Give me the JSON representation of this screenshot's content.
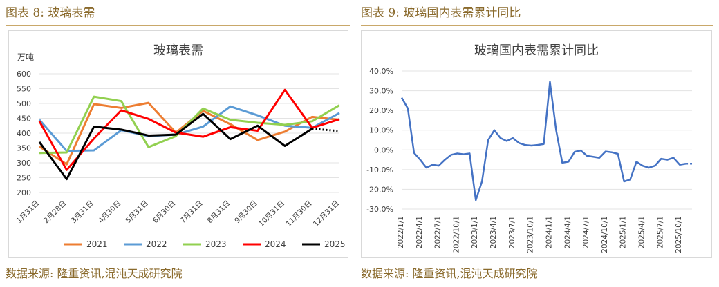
{
  "left": {
    "fig_title": "图表 8: 玻璃表需",
    "source": "数据来源: 隆重资讯,混沌天成研究院",
    "chart_data": {
      "type": "line",
      "title": "玻璃表需",
      "unit_label": "万吨",
      "ylim": [
        200,
        600
      ],
      "yticks": [
        200,
        250,
        300,
        350,
        400,
        450,
        500,
        550,
        600
      ],
      "categories": [
        "1月31日",
        "2月28日",
        "3月31日",
        "4月30日",
        "5月31日",
        "6月30日",
        "7月31日",
        "8月31日",
        "9月30日",
        "10月31日",
        "11月30日",
        "12月31日"
      ],
      "legend_position": "bottom",
      "series": [
        {
          "name": "2021",
          "color": "#ed7d31",
          "values": [
            355,
            295,
            498,
            485,
            502,
            402,
            475,
            430,
            377,
            405,
            455,
            445
          ]
        },
        {
          "name": "2022",
          "color": "#5b9bd5",
          "values": [
            445,
            340,
            342,
            410,
            390,
            395,
            422,
            490,
            460,
            425,
            418,
            468
          ]
        },
        {
          "name": "2023",
          "color": "#92d050",
          "values": [
            333,
            335,
            523,
            508,
            353,
            390,
            483,
            445,
            435,
            428,
            440,
            494
          ]
        },
        {
          "name": "2024",
          "color": "#ff0000",
          "values": [
            440,
            276,
            382,
            477,
            448,
            402,
            388,
            420,
            408,
            546,
            418,
            447
          ]
        },
        {
          "name": "2025",
          "color": "#000000",
          "values": [
            370,
            245,
            422,
            412,
            392,
            395,
            465,
            380,
            425,
            357,
            415,
            407
          ],
          "dotted_from": 10
        }
      ]
    }
  },
  "right": {
    "fig_title": "图表 9: 玻璃国内表需累计同比",
    "source": "数据来源: 隆重资讯,混沌天成研究院",
    "chart_data": {
      "type": "line",
      "title": "玻璃国内表需累计同比",
      "ylim": [
        -30,
        40
      ],
      "yticks": [
        -30,
        -20,
        -10,
        0,
        10,
        20,
        30,
        40
      ],
      "ytick_labels": [
        "-30.0%",
        "-20.0%",
        "-10.0%",
        "0.0%",
        "10.0%",
        "20.0%",
        "30.0%",
        "40.0%"
      ],
      "x_start": "2022-01",
      "xtick_labels": [
        "2022/1/1",
        "2022/4/1",
        "2022/7/1",
        "2022/10/1",
        "2023/1/1",
        "2023/4/1",
        "2023/7/1",
        "2023/10/1",
        "2024/1/1",
        "2024/4/1",
        "2024/7/1",
        "2024/10/1",
        "2025/1/1",
        "2025/4/1",
        "2025/7/1",
        "2025/10/1"
      ],
      "color": "#4472c4",
      "series": [
        {
          "name": "",
          "values": [
            26.5,
            21,
            -1.5,
            -5,
            -9,
            -7.5,
            -8,
            -5,
            -2.5,
            -1.8,
            -2.2,
            -1.8,
            -25.5,
            -16,
            5,
            10,
            6,
            4.5,
            6,
            3.5,
            2.5,
            2.2,
            2.5,
            3,
            34.5,
            10,
            -6.5,
            -6,
            -1,
            -0.3,
            -3,
            -3.5,
            -4,
            -0.8,
            -1.2,
            -2,
            -16,
            -15,
            -6,
            -8,
            -9,
            -8,
            -4.5,
            -5,
            -4,
            -7.5,
            -7,
            -7
          ]
        }
      ]
    }
  }
}
